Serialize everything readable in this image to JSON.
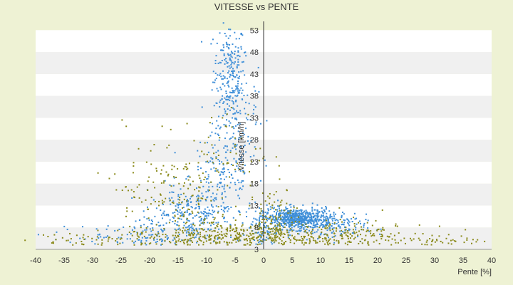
{
  "chart_data": {
    "type": "scatter",
    "title": "VITESSE vs PENTE",
    "xlabel": "Pente [%]",
    "ylabel": "Vitesse [km/h]",
    "xlim": [
      -40,
      40
    ],
    "ylim": [
      3,
      55
    ],
    "x_ticks": [
      -40,
      -35,
      -30,
      -25,
      -20,
      -15,
      -10,
      -5,
      0,
      5,
      10,
      15,
      20,
      25,
      30,
      35,
      40
    ],
    "y_ticks": [
      3,
      8,
      13,
      18,
      23,
      28,
      33,
      38,
      43,
      48,
      53
    ],
    "grid": "horizontal bands",
    "legend": "none",
    "colors": {
      "background": "#eef2d4",
      "plot_band_light": "#ffffff",
      "plot_band_dark": "#f0f0f0",
      "series_blue": "#3f8fd8",
      "series_olive": "#8a8a1a"
    },
    "series": [
      {
        "color": "#3f8fd8",
        "clusters": [
          {
            "cx": -6,
            "cy": 44,
            "sx": 1.4,
            "sy": 5.5,
            "n": 180
          },
          {
            "cx": -5,
            "cy": 34,
            "sx": 2.0,
            "sy": 6.0,
            "n": 150
          },
          {
            "cx": -7,
            "cy": 20,
            "sx": 3.0,
            "sy": 5.0,
            "n": 140
          },
          {
            "cx": -12,
            "cy": 11,
            "sx": 4.0,
            "sy": 3.0,
            "n": 260
          },
          {
            "cx": -20,
            "cy": 7,
            "sx": 4.0,
            "sy": 2.0,
            "n": 90
          },
          {
            "cx": 6,
            "cy": 10,
            "sx": 3.0,
            "sy": 1.2,
            "n": 650
          },
          {
            "cx": 12,
            "cy": 8,
            "sx": 3.0,
            "sy": 1.5,
            "n": 120
          },
          {
            "cx": 0,
            "cy": 8,
            "sx": 1.0,
            "sy": 3.0,
            "n": 70
          },
          {
            "cx": -30,
            "cy": 6,
            "sx": 5.0,
            "sy": 1.5,
            "n": 25
          }
        ]
      },
      {
        "color": "#8a8a1a",
        "clusters": [
          {
            "cx": -15,
            "cy": 16,
            "sx": 6.0,
            "sy": 6.0,
            "n": 200
          },
          {
            "cx": -8,
            "cy": 6,
            "sx": 7.0,
            "sy": 1.5,
            "n": 260
          },
          {
            "cx": 10,
            "cy": 6,
            "sx": 9.0,
            "sy": 1.8,
            "n": 260
          },
          {
            "cx": 2,
            "cy": 10,
            "sx": 2.0,
            "sy": 3.5,
            "n": 90
          },
          {
            "cx": -30,
            "cy": 5,
            "sx": 6.0,
            "sy": 1.0,
            "n": 50
          },
          {
            "cx": 30,
            "cy": 5,
            "sx": 6.0,
            "sy": 1.0,
            "n": 50
          },
          {
            "cx": -5,
            "cy": 25,
            "sx": 3.0,
            "sy": 5.0,
            "n": 40
          }
        ]
      }
    ]
  }
}
